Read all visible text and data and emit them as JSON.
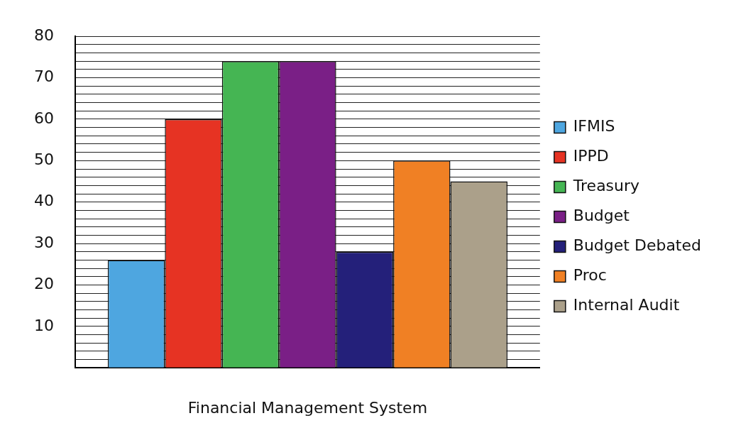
{
  "chart_data": {
    "type": "bar",
    "xlabel": "Financial Management System",
    "categories": [
      null
    ],
    "series": [
      {
        "name": "IFMIS",
        "color": "#4ea6e0",
        "values": [
          26
        ]
      },
      {
        "name": "IPPD",
        "color": "#e63323",
        "values": [
          60
        ]
      },
      {
        "name": "Treasury",
        "color": "#45b553",
        "values": [
          74
        ]
      },
      {
        "name": "Budget",
        "color": "#7a1f86",
        "values": [
          74
        ]
      },
      {
        "name": "Budget Debated",
        "color": "#24207a",
        "values": [
          28
        ]
      },
      {
        "name": "Proc",
        "color": "#f08024",
        "values": [
          50
        ]
      },
      {
        "name": "Internal Audit",
        "color": "#aba08a",
        "values": [
          45
        ]
      }
    ],
    "ylim": [
      0,
      80
    ],
    "yticks": [
      {
        "value": 0,
        "label": null
      },
      {
        "value": 2,
        "label": null
      },
      {
        "value": 4,
        "label": null
      },
      {
        "value": 6,
        "label": null
      },
      {
        "value": 8,
        "label": null
      },
      10,
      {
        "value": 12,
        "label": null
      },
      {
        "value": 14,
        "label": null
      },
      {
        "value": 16,
        "label": null
      },
      {
        "value": 18,
        "label": null
      },
      20,
      {
        "value": 22,
        "label": null
      },
      {
        "value": 24,
        "label": null
      },
      {
        "value": 26,
        "label": null
      },
      {
        "value": 28,
        "label": null
      },
      30,
      {
        "value": 32,
        "label": null
      },
      {
        "value": 34,
        "label": null
      },
      {
        "value": 36,
        "label": null
      },
      {
        "value": 38,
        "label": null
      },
      40,
      {
        "value": 42,
        "label": null
      },
      {
        "value": 44,
        "label": null
      },
      {
        "value": 46,
        "label": null
      },
      {
        "value": 48,
        "label": null
      },
      50,
      {
        "value": 52,
        "label": null
      },
      {
        "value": 54,
        "label": null
      },
      {
        "value": 56,
        "label": null
      },
      {
        "value": 58,
        "label": null
      },
      60,
      {
        "value": 62,
        "label": null
      },
      {
        "value": 64,
        "label": null
      },
      {
        "value": 66,
        "label": null
      },
      {
        "value": 68,
        "label": null
      },
      70,
      {
        "value": 72,
        "label": null
      },
      {
        "value": 74,
        "label": null
      },
      {
        "value": 76,
        "label": null
      },
      {
        "value": 78,
        "label": null
      },
      80
    ],
    "grid": "y",
    "legend": "right"
  }
}
